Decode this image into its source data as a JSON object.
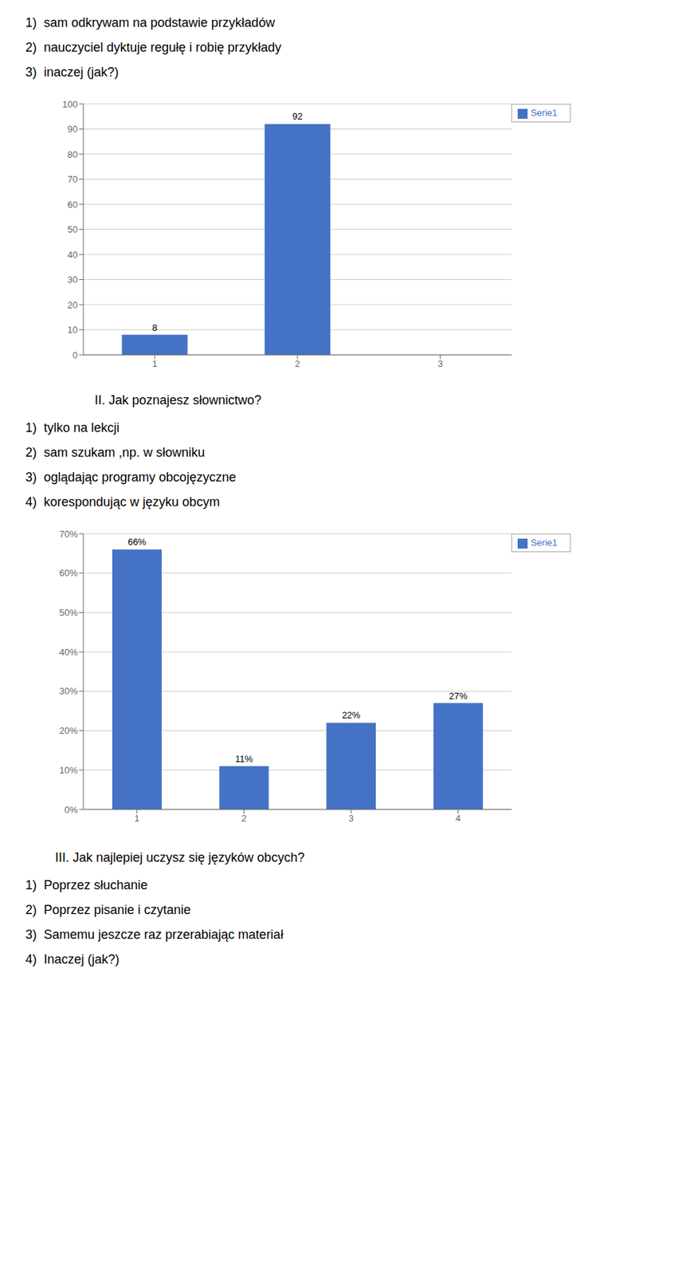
{
  "chart_data": [
    {
      "type": "bar",
      "annotations": [
        "1)  sam odkrywam na podstawie przykładów",
        "2)  nauczyciel dyktuje regułę i robię przykłady",
        "3)  inaczej (jak?)"
      ],
      "categories": [
        "1",
        "2",
        "3"
      ],
      "series": [
        {
          "name": "Serie1",
          "color": "#4472C4",
          "values": [
            8,
            92,
            0
          ],
          "value_labels": [
            "8",
            "92",
            null
          ]
        }
      ],
      "ylim": [
        0,
        100
      ],
      "yticks": [
        0,
        10,
        20,
        30,
        40,
        50,
        60,
        70,
        80,
        90,
        100
      ],
      "grid": true,
      "legend": "upper right",
      "data_labels": true
    },
    {
      "type": "bar",
      "title": "II. Jak poznajesz słownictwo?",
      "annotations": [
        "1)  tylko na lekcji",
        "2)  sam szukam ,np. w słowniku",
        "3)  oglądając programy obcojęzyczne",
        "4)  korespondując w języku obcym"
      ],
      "categories": [
        "1",
        "2",
        "3",
        "4"
      ],
      "series": [
        {
          "name": "Serie1",
          "color": "#4472C4",
          "values": [
            0.66,
            0.11,
            0.22,
            0.27
          ],
          "value_labels": [
            "66%",
            "11%",
            "22%",
            "27%"
          ]
        }
      ],
      "ylim": [
        0,
        0.7
      ],
      "yticks": [
        {
          "value": 0.0,
          "label": "0%"
        },
        {
          "value": 0.1,
          "label": "10%"
        },
        {
          "value": 0.2,
          "label": "20%"
        },
        {
          "value": 0.3,
          "label": "30%"
        },
        {
          "value": 0.4,
          "label": "40%"
        },
        {
          "value": 0.5,
          "label": "50%"
        },
        {
          "value": 0.6,
          "label": "60%"
        },
        {
          "value": 0.7,
          "label": "70%"
        }
      ],
      "grid": true,
      "legend": "upper right",
      "data_labels": true
    }
  ],
  "title": "III. Jak najlepiej uczysz się języków obcych?",
  "annotations": [
    "1)  Poprzez słuchanie",
    "2)  Poprzez pisanie i czytanie",
    "3)  Samemu jeszcze raz przerabiając materiał",
    "4)  Inaczej (jak?)"
  ]
}
